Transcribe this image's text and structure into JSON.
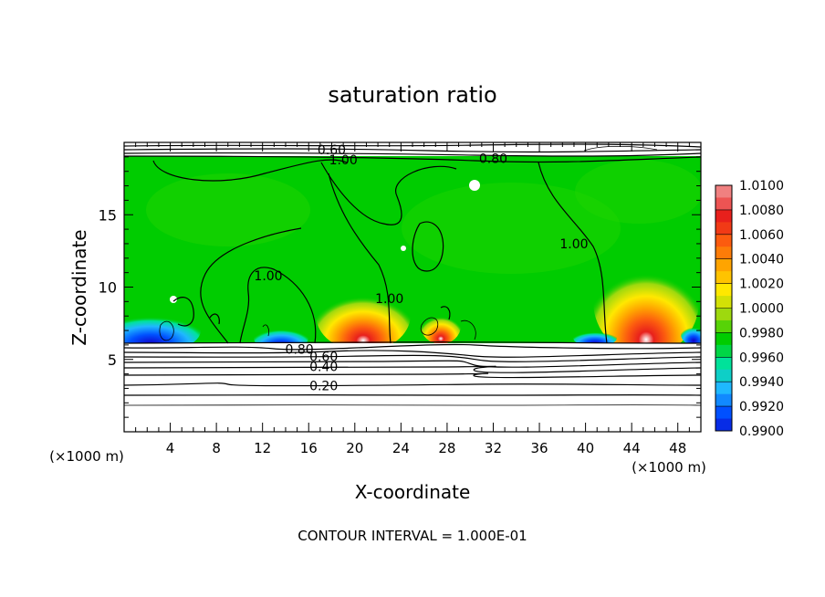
{
  "chart_data": {
    "type": "heatmap",
    "title": "saturation ratio",
    "xlabel": "X-coordinate",
    "ylabel": "Z-coordinate",
    "x_unit": "(×1000 m)",
    "y_unit": "(×1000 m)",
    "x_range": [
      0,
      50
    ],
    "y_range": [
      0,
      20
    ],
    "x_ticks": [
      "4",
      "8",
      "12",
      "16",
      "20",
      "24",
      "28",
      "32",
      "36",
      "40",
      "44",
      "48"
    ],
    "y_ticks": [
      "5",
      "10",
      "15"
    ],
    "footer": "CONTOUR INTERVAL = 1.000E-01",
    "colorbar": {
      "levels": [
        "1.0100",
        "1.0080",
        "1.0060",
        "1.0040",
        "1.0020",
        "1.0000",
        "0.9980",
        "0.9960",
        "0.9940",
        "0.9920",
        "0.9900"
      ],
      "colors": [
        "#f08080",
        "#e8201c",
        "#fc5b0f",
        "#ffa400",
        "#ffe800",
        "#9ed90e",
        "#00cc00",
        "#00e29a",
        "#1fb8ff",
        "#0050ff",
        "#1000c8",
        "#6a00a8"
      ]
    },
    "contour_labels": [
      {
        "text": "0.60",
        "x": 18.0,
        "z": 19.5
      },
      {
        "text": "1.00",
        "x": 19.0,
        "z": 18.8
      },
      {
        "text": "0.80",
        "x": 32.0,
        "z": 18.9
      },
      {
        "text": "1.00",
        "x": 39.0,
        "z": 13.0
      },
      {
        "text": "1.00",
        "x": 12.5,
        "z": 10.8
      },
      {
        "text": "1.00",
        "x": 23.0,
        "z": 9.2
      },
      {
        "text": "0.80",
        "x": 15.2,
        "z": 5.7
      },
      {
        "text": "0.60",
        "x": 17.3,
        "z": 5.2
      },
      {
        "text": "0.40",
        "x": 17.3,
        "z": 4.5
      },
      {
        "text": "0.20",
        "x": 17.3,
        "z": 3.2
      }
    ]
  }
}
